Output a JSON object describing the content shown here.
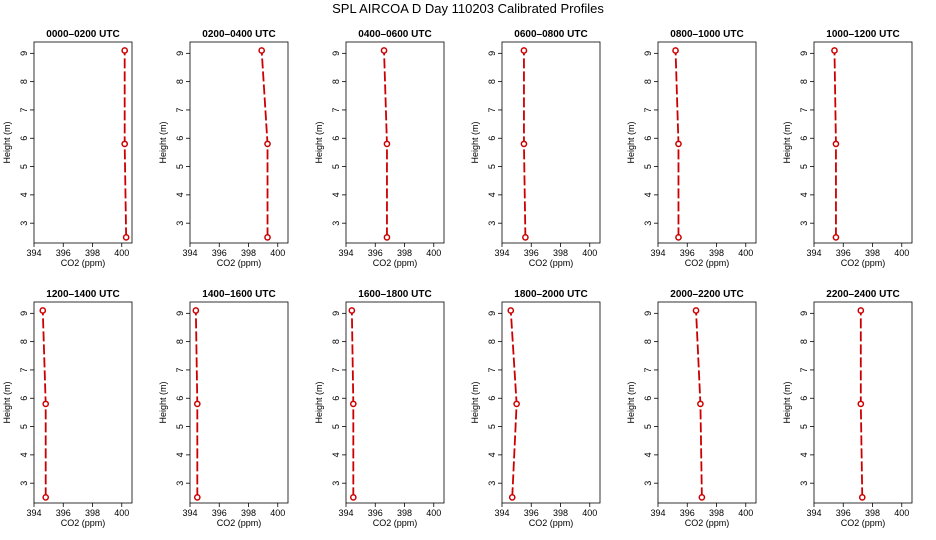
{
  "figure_title": "SPL AIRCOA D  Day 110203  Calibrated Profiles",
  "chart_data": [
    {
      "type": "line",
      "title": "0000–0200 UTC",
      "xlabel": "CO2 (ppm)",
      "ylabel": "Height (m)",
      "xlim": [
        394,
        400.7
      ],
      "ylim": [
        2.3,
        9.4
      ],
      "xticks": [
        394,
        396,
        398,
        400
      ],
      "yticks": [
        3,
        4,
        5,
        6,
        7,
        8,
        9
      ],
      "grid": false,
      "x": [
        400.3,
        400.2,
        400.2
      ],
      "y": [
        2.5,
        5.8,
        9.1
      ]
    },
    {
      "type": "line",
      "title": "0200–0400 UTC",
      "xlabel": "CO2 (ppm)",
      "ylabel": "Height (m)",
      "xlim": [
        394,
        400.7
      ],
      "ylim": [
        2.3,
        9.4
      ],
      "xticks": [
        394,
        396,
        398,
        400
      ],
      "yticks": [
        3,
        4,
        5,
        6,
        7,
        8,
        9
      ],
      "grid": false,
      "x": [
        399.3,
        399.3,
        398.9
      ],
      "y": [
        2.5,
        5.8,
        9.1
      ]
    },
    {
      "type": "line",
      "title": "0400–0600 UTC",
      "xlabel": "CO2 (ppm)",
      "ylabel": "Height (m)",
      "xlim": [
        394,
        400.7
      ],
      "ylim": [
        2.3,
        9.4
      ],
      "xticks": [
        394,
        396,
        398,
        400
      ],
      "yticks": [
        3,
        4,
        5,
        6,
        7,
        8,
        9
      ],
      "grid": false,
      "x": [
        396.8,
        396.8,
        396.6
      ],
      "y": [
        2.5,
        5.8,
        9.1
      ]
    },
    {
      "type": "line",
      "title": "0600–0800 UTC",
      "xlabel": "CO2 (ppm)",
      "ylabel": "Height (m)",
      "xlim": [
        394,
        400.7
      ],
      "ylim": [
        2.3,
        9.4
      ],
      "xticks": [
        394,
        396,
        398,
        400
      ],
      "yticks": [
        3,
        4,
        5,
        6,
        7,
        8,
        9
      ],
      "grid": false,
      "x": [
        395.6,
        395.5,
        395.5
      ],
      "y": [
        2.5,
        5.8,
        9.1
      ]
    },
    {
      "type": "line",
      "title": "0800–1000 UTC",
      "xlabel": "CO2 (ppm)",
      "ylabel": "Height (m)",
      "xlim": [
        394,
        400.7
      ],
      "ylim": [
        2.3,
        9.4
      ],
      "xticks": [
        394,
        396,
        398,
        400
      ],
      "yticks": [
        3,
        4,
        5,
        6,
        7,
        8,
        9
      ],
      "grid": false,
      "x": [
        395.4,
        395.4,
        395.2
      ],
      "y": [
        2.5,
        5.8,
        9.1
      ]
    },
    {
      "type": "line",
      "title": "1000–1200 UTC",
      "xlabel": "CO2 (ppm)",
      "ylabel": "Height (m)",
      "xlim": [
        394,
        400.7
      ],
      "ylim": [
        2.3,
        9.4
      ],
      "xticks": [
        394,
        396,
        398,
        400
      ],
      "yticks": [
        3,
        4,
        5,
        6,
        7,
        8,
        9
      ],
      "grid": false,
      "x": [
        395.5,
        395.5,
        395.4
      ],
      "y": [
        2.5,
        5.8,
        9.1
      ]
    },
    {
      "type": "line",
      "title": "1200–1400 UTC",
      "xlabel": "CO2 (ppm)",
      "ylabel": "Height (m)",
      "xlim": [
        394,
        400.7
      ],
      "ylim": [
        2.3,
        9.4
      ],
      "xticks": [
        394,
        396,
        398,
        400
      ],
      "yticks": [
        3,
        4,
        5,
        6,
        7,
        8,
        9
      ],
      "grid": false,
      "x": [
        394.8,
        394.8,
        394.6
      ],
      "y": [
        2.5,
        5.8,
        9.1
      ]
    },
    {
      "type": "line",
      "title": "1400–1600 UTC",
      "xlabel": "CO2 (ppm)",
      "ylabel": "Height (m)",
      "xlim": [
        394,
        400.7
      ],
      "ylim": [
        2.3,
        9.4
      ],
      "xticks": [
        394,
        396,
        398,
        400
      ],
      "yticks": [
        3,
        4,
        5,
        6,
        7,
        8,
        9
      ],
      "grid": false,
      "x": [
        394.5,
        394.5,
        394.4
      ],
      "y": [
        2.5,
        5.8,
        9.1
      ]
    },
    {
      "type": "line",
      "title": "1600–1800 UTC",
      "xlabel": "CO2 (ppm)",
      "ylabel": "Height (m)",
      "xlim": [
        394,
        400.7
      ],
      "ylim": [
        2.3,
        9.4
      ],
      "xticks": [
        394,
        396,
        398,
        400
      ],
      "yticks": [
        3,
        4,
        5,
        6,
        7,
        8,
        9
      ],
      "grid": false,
      "x": [
        394.5,
        394.5,
        394.4
      ],
      "y": [
        2.5,
        5.8,
        9.1
      ]
    },
    {
      "type": "line",
      "title": "1800–2000 UTC",
      "xlabel": "CO2 (ppm)",
      "ylabel": "Height (m)",
      "xlim": [
        394,
        400.7
      ],
      "ylim": [
        2.3,
        9.4
      ],
      "xticks": [
        394,
        396,
        398,
        400
      ],
      "yticks": [
        3,
        4,
        5,
        6,
        7,
        8,
        9
      ],
      "grid": false,
      "x": [
        394.7,
        395.0,
        394.6
      ],
      "y": [
        2.5,
        5.8,
        9.1
      ]
    },
    {
      "type": "line",
      "title": "2000–2200 UTC",
      "xlabel": "CO2 (ppm)",
      "ylabel": "Height (m)",
      "xlim": [
        394,
        400.7
      ],
      "ylim": [
        2.3,
        9.4
      ],
      "xticks": [
        394,
        396,
        398,
        400
      ],
      "yticks": [
        3,
        4,
        5,
        6,
        7,
        8,
        9
      ],
      "grid": false,
      "x": [
        397.0,
        396.9,
        396.6
      ],
      "y": [
        2.5,
        5.8,
        9.1
      ]
    },
    {
      "type": "line",
      "title": "2200–2400 UTC",
      "xlabel": "CO2 (ppm)",
      "ylabel": "Height (m)",
      "xlim": [
        394,
        400.7
      ],
      "ylim": [
        2.3,
        9.4
      ],
      "xticks": [
        394,
        396,
        398,
        400
      ],
      "yticks": [
        3,
        4,
        5,
        6,
        7,
        8,
        9
      ],
      "grid": false,
      "x": [
        397.3,
        397.2,
        397.2
      ],
      "y": [
        2.5,
        5.8,
        9.1
      ]
    }
  ]
}
